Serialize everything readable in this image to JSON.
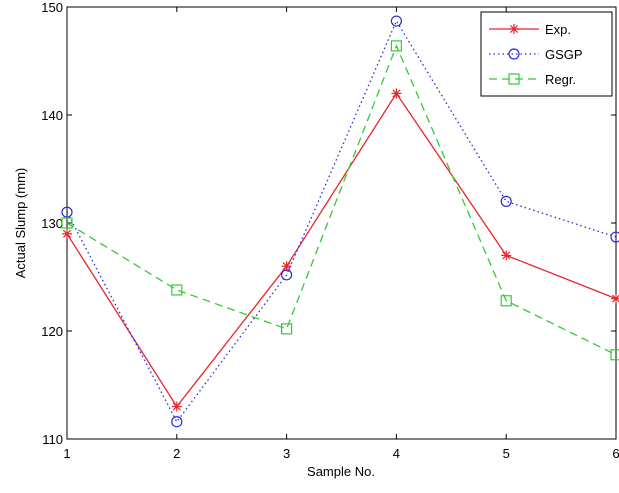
{
  "chart_data": {
    "type": "line",
    "title": "",
    "xlabel": "Sample No.",
    "ylabel": "Actual Slump (mm)",
    "x": [
      1,
      2,
      3,
      4,
      5,
      6
    ],
    "xlim": [
      1,
      6
    ],
    "ylim": [
      110,
      150
    ],
    "xticks": [
      1,
      2,
      3,
      4,
      5,
      6
    ],
    "yticks": [
      110,
      120,
      130,
      140,
      150
    ],
    "grid": false,
    "legend_position": "top-right",
    "series": [
      {
        "name": "Exp.",
        "values": [
          129,
          113,
          126,
          142,
          127,
          123
        ],
        "color": "#e8262c",
        "line_style": "solid",
        "marker": "asterisk"
      },
      {
        "name": "GSGP",
        "values": [
          131,
          111.6,
          125.2,
          148.7,
          132,
          128.7
        ],
        "color": "#2b2bd9",
        "line_style": "dotted",
        "marker": "circle"
      },
      {
        "name": "Regr.",
        "values": [
          130,
          123.8,
          120.2,
          146.4,
          122.8,
          117.8
        ],
        "color": "#33cc33",
        "line_style": "dashed",
        "marker": "square"
      }
    ]
  }
}
